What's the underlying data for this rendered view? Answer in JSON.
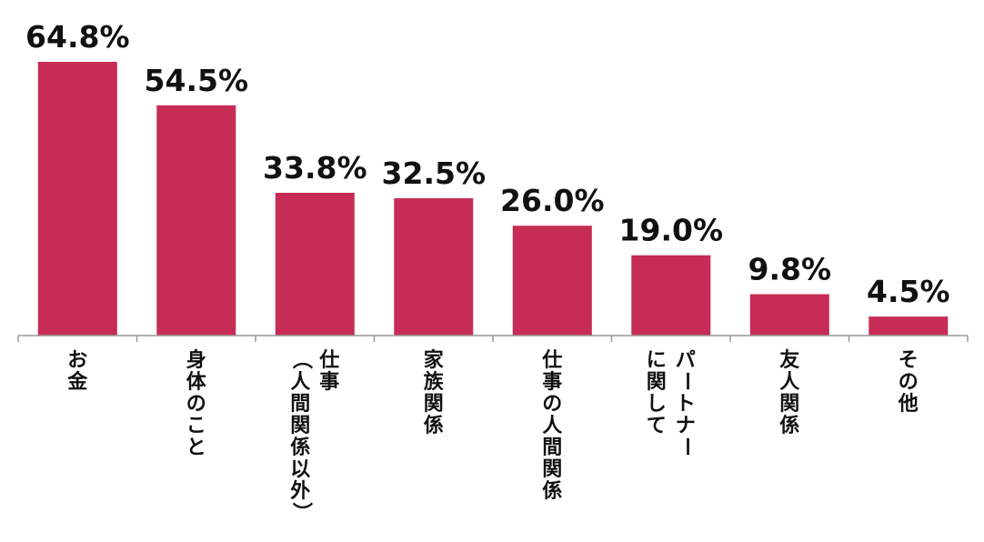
{
  "chart_data": {
    "type": "bar",
    "title": "",
    "xlabel": "",
    "ylabel": "",
    "ylim": [
      0,
      70
    ],
    "grid": false,
    "legend": "none",
    "bar_color": "#c62c55",
    "axis_color": "#999999",
    "categories": [
      [
        "お金"
      ],
      [
        "身体のこと"
      ],
      [
        "仕事",
        "（人間関係以外）"
      ],
      [
        "家族関係"
      ],
      [
        "仕事の人間関係"
      ],
      [
        "パートナー",
        "に関して"
      ],
      [
        "友人関係"
      ],
      [
        "その他"
      ]
    ],
    "values": [
      64.8,
      54.5,
      33.8,
      32.5,
      26.0,
      19.0,
      9.8,
      4.5
    ],
    "value_labels": [
      "64.8%",
      "54.5%",
      "33.8%",
      "32.5%",
      "26.0%",
      "19.0%",
      "9.8%",
      "4.5%"
    ]
  }
}
